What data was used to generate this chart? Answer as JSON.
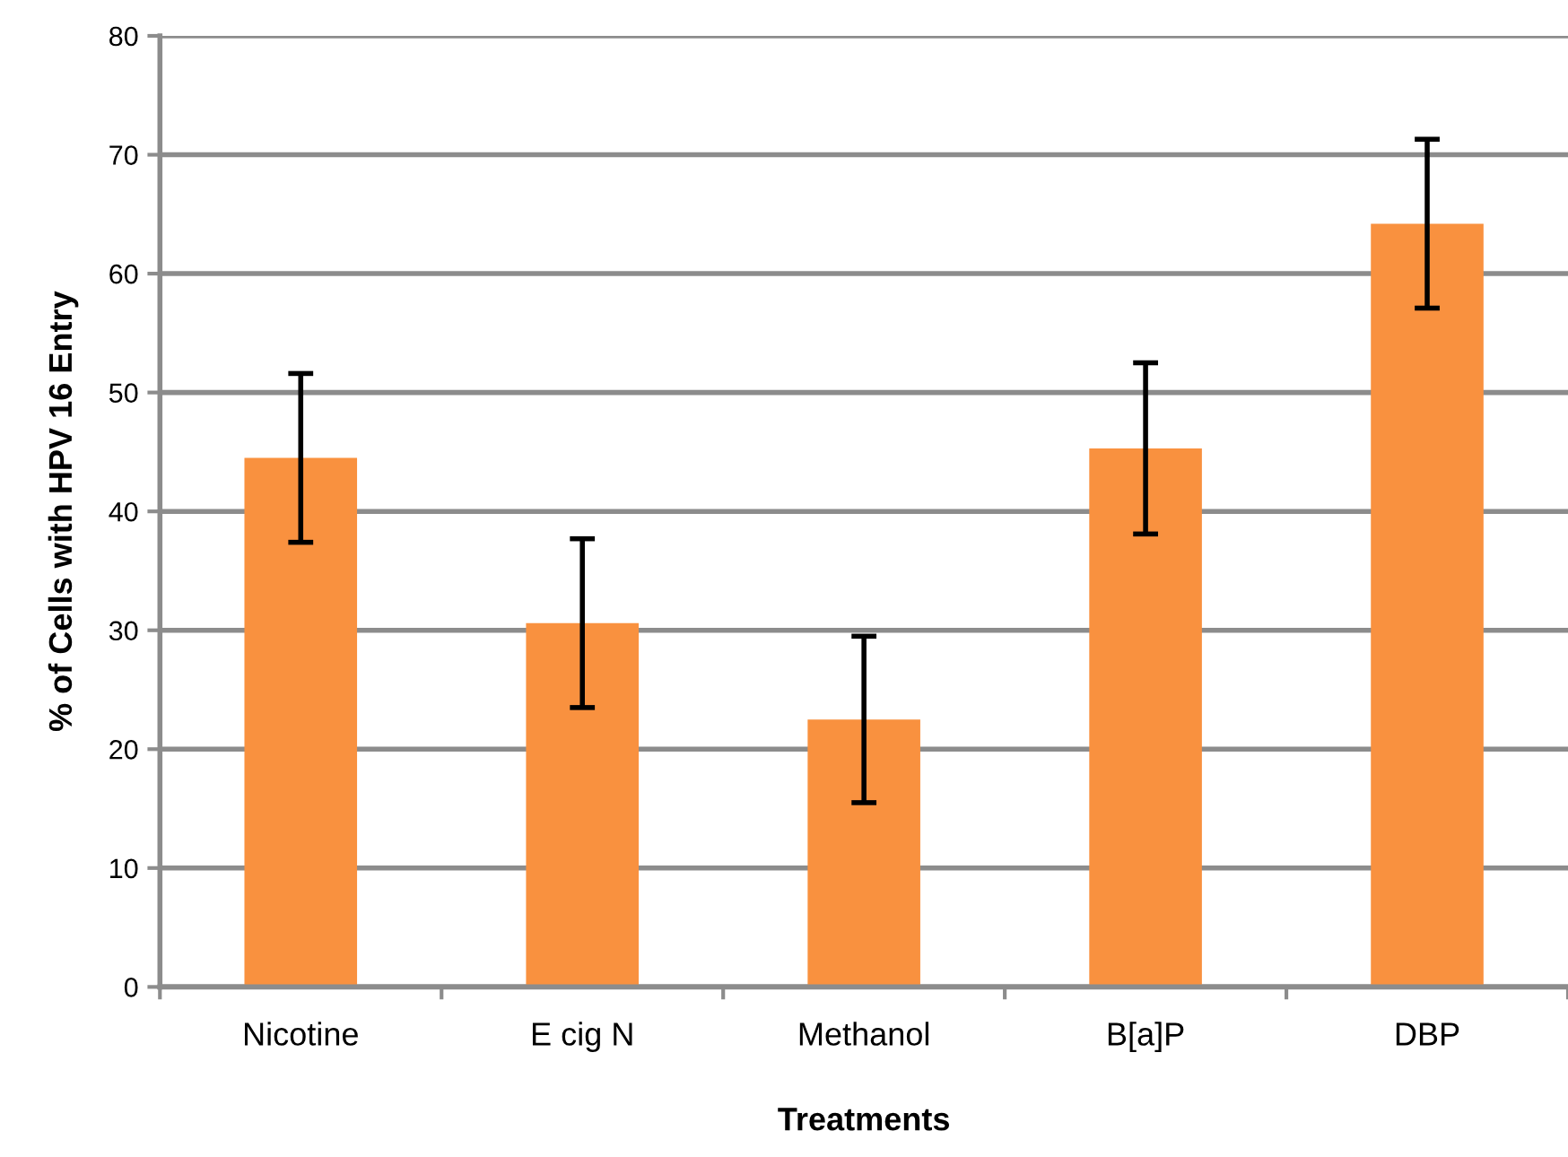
{
  "chart_data": {
    "type": "bar",
    "xlabel": "Treatments",
    "ylabel": "% of Cells with HPV 16 Entry",
    "categories": [
      "Nicotine",
      "E cig N",
      "Methanol",
      "B[a]P",
      "DBP"
    ],
    "values": [
      44.5,
      30.6,
      22.5,
      45.3,
      64.2
    ],
    "errors": [
      7.1,
      7.1,
      7.0,
      7.2,
      7.1
    ],
    "color": "#f9913f",
    "ylim": [
      0,
      80
    ],
    "yticks": [
      0,
      10,
      20,
      30,
      40,
      50,
      60,
      70,
      80
    ],
    "grid": "y",
    "legend": false
  }
}
